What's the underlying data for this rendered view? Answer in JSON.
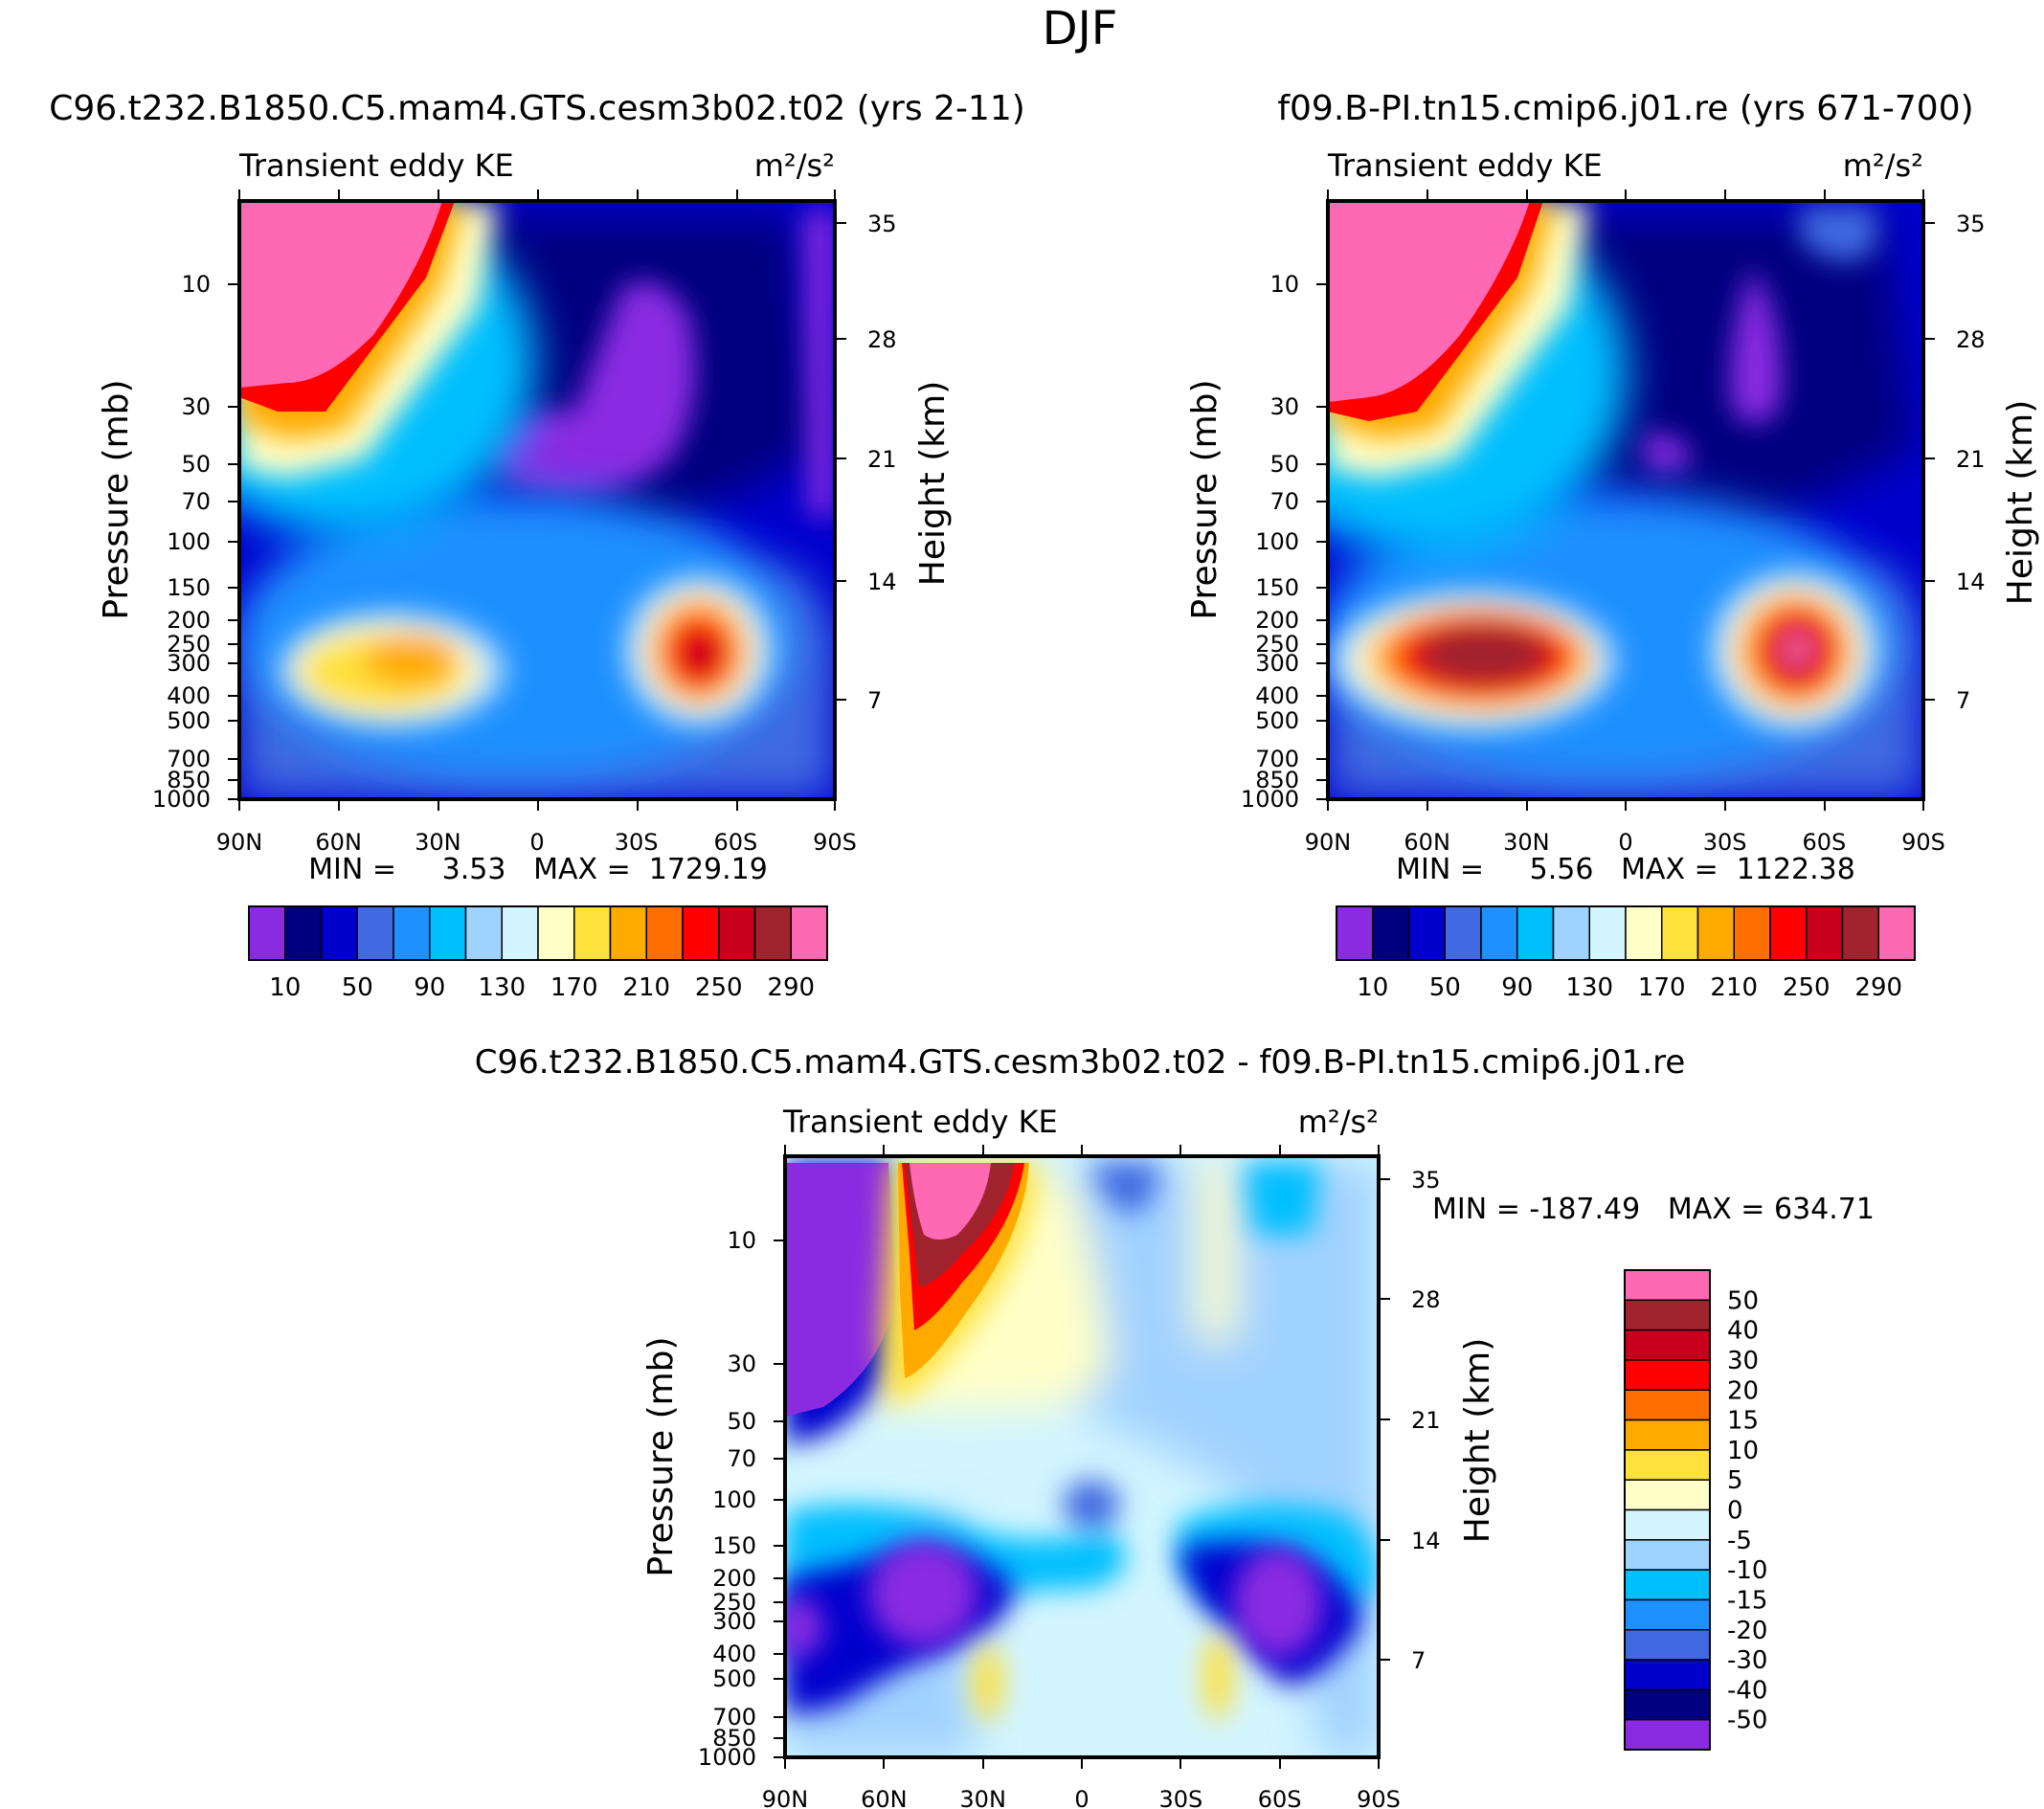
{
  "figure": {
    "title": "DJF"
  },
  "chart_data": [
    {
      "type": "heatmap",
      "id": "top-left",
      "title": "C96.t232.B1850.C5.mam4.GTS.cesm3b02.t02 (yrs 2-11)",
      "subtitle_left": "Transient eddy KE",
      "units": "m²/s²",
      "xlabel": "",
      "ylabel": "Pressure (mb)",
      "y2label": "Height (km)",
      "x_ticks": [
        "90N",
        "60N",
        "30N",
        "0",
        "30S",
        "60S",
        "90S"
      ],
      "y_ticks": [
        "10",
        "30",
        "50",
        "70",
        "100",
        "150",
        "200",
        "250",
        "300",
        "400",
        "500",
        "700",
        "850",
        "1000"
      ],
      "y_ticks_values": [
        10,
        30,
        50,
        70,
        100,
        150,
        200,
        250,
        300,
        400,
        500,
        700,
        850,
        1000
      ],
      "y2_ticks": [
        "35",
        "28",
        "21",
        "14",
        "7"
      ],
      "ylim": [
        3,
        1000
      ],
      "yscale": "log",
      "min_max_label": "MIN =     3.53   MAX =  1729.19",
      "min": 3.53,
      "max": 1729.19,
      "colorbar": {
        "orientation": "horizontal",
        "labels": [
          "10",
          "50",
          "90",
          "130",
          "170",
          "210",
          "250",
          "290"
        ],
        "colors": [
          "#8a2be2",
          "#000080",
          "#0000cd",
          "#4169e1",
          "#1e90ff",
          "#00bfff",
          "#a0d2ff",
          "#d2f5ff",
          "#ffffc8",
          "#ffe13c",
          "#ffaa00",
          "#ff6e00",
          "#ff0000",
          "#c8001e",
          "#a0232d",
          "#ff69b4"
        ]
      },
      "features": [
        {
          "lat": 74,
          "p": 300,
          "value": 150
        },
        {
          "lat": 48,
          "p": 350,
          "value": 215
        },
        {
          "lat": -47,
          "p": 290,
          "value": 270
        },
        {
          "lat": 72,
          "p": 8,
          "value": 300
        }
      ]
    },
    {
      "type": "heatmap",
      "id": "top-right",
      "title": "f09.B-PI.tn15.cmip6.j01.re (yrs 671-700)",
      "subtitle_left": "Transient eddy KE",
      "units": "m²/s²",
      "xlabel": "",
      "ylabel": "Pressure (mb)",
      "y2label": "Height (km)",
      "x_ticks": [
        "90N",
        "60N",
        "30N",
        "0",
        "30S",
        "60S",
        "90S"
      ],
      "y_ticks": [
        "10",
        "30",
        "50",
        "70",
        "100",
        "150",
        "200",
        "250",
        "300",
        "400",
        "500",
        "700",
        "850",
        "1000"
      ],
      "y_ticks_values": [
        10,
        30,
        50,
        70,
        100,
        150,
        200,
        250,
        300,
        400,
        500,
        700,
        850,
        1000
      ],
      "y2_ticks": [
        "35",
        "28",
        "21",
        "14",
        "7"
      ],
      "ylim": [
        3,
        1000
      ],
      "yscale": "log",
      "min_max_label": "MIN =     5.56   MAX =  1122.38",
      "min": 5.56,
      "max": 1122.38,
      "colorbar": {
        "orientation": "horizontal",
        "labels": [
          "10",
          "50",
          "90",
          "130",
          "170",
          "210",
          "250",
          "290"
        ],
        "colors": [
          "#8a2be2",
          "#000080",
          "#0000cd",
          "#4169e1",
          "#1e90ff",
          "#00bfff",
          "#a0d2ff",
          "#d2f5ff",
          "#ffffc8",
          "#ffe13c",
          "#ffaa00",
          "#ff6e00",
          "#ff0000",
          "#c8001e",
          "#a0232d",
          "#ff69b4"
        ]
      },
      "features": [
        {
          "lat": 45,
          "p": 280,
          "value": 285
        },
        {
          "lat": -50,
          "p": 270,
          "value": 300
        },
        {
          "lat": 72,
          "p": 8,
          "value": 300
        }
      ]
    },
    {
      "type": "heatmap",
      "id": "bottom-diff",
      "title": "C96.t232.B1850.C5.mam4.GTS.cesm3b02.t02 - f09.B-PI.tn15.cmip6.j01.re",
      "subtitle_left": "Transient eddy KE",
      "units": "m²/s²",
      "xlabel": "",
      "ylabel": "Pressure (mb)",
      "y2label": "Height (km)",
      "x_ticks": [
        "90N",
        "60N",
        "30N",
        "0",
        "30S",
        "60S",
        "90S"
      ],
      "y_ticks": [
        "10",
        "30",
        "50",
        "70",
        "100",
        "150",
        "200",
        "250",
        "300",
        "400",
        "500",
        "700",
        "850",
        "1000"
      ],
      "y_ticks_values": [
        10,
        30,
        50,
        70,
        100,
        150,
        200,
        250,
        300,
        400,
        500,
        700,
        850,
        1000
      ],
      "y2_ticks": [
        "35",
        "28",
        "21",
        "14",
        "7"
      ],
      "ylim": [
        3,
        1000
      ],
      "yscale": "log",
      "min_max_label": "MIN = -187.49   MAX = 634.71",
      "min": -187.49,
      "max": 634.71,
      "colorbar": {
        "orientation": "vertical",
        "labels": [
          "50",
          "40",
          "30",
          "20",
          "15",
          "10",
          "5",
          "0",
          "-5",
          "-10",
          "-15",
          "-20",
          "-30",
          "-40",
          "-50"
        ],
        "colors": [
          "#ff69b4",
          "#a0232d",
          "#c8001e",
          "#ff0000",
          "#ff6e00",
          "#ffaa00",
          "#ffe13c",
          "#ffffc8",
          "#d2f5ff",
          "#a0d2ff",
          "#00bfff",
          "#1e90ff",
          "#4169e1",
          "#0000cd",
          "#000080",
          "#8a2be2"
        ]
      },
      "features": [
        {
          "lat": 78,
          "p": 15,
          "value": -60
        },
        {
          "lat": 40,
          "p": 230,
          "value": -60
        },
        {
          "lat": -52,
          "p": 230,
          "value": -60
        },
        {
          "lat": 40,
          "p": 8,
          "value": 60
        }
      ]
    }
  ]
}
